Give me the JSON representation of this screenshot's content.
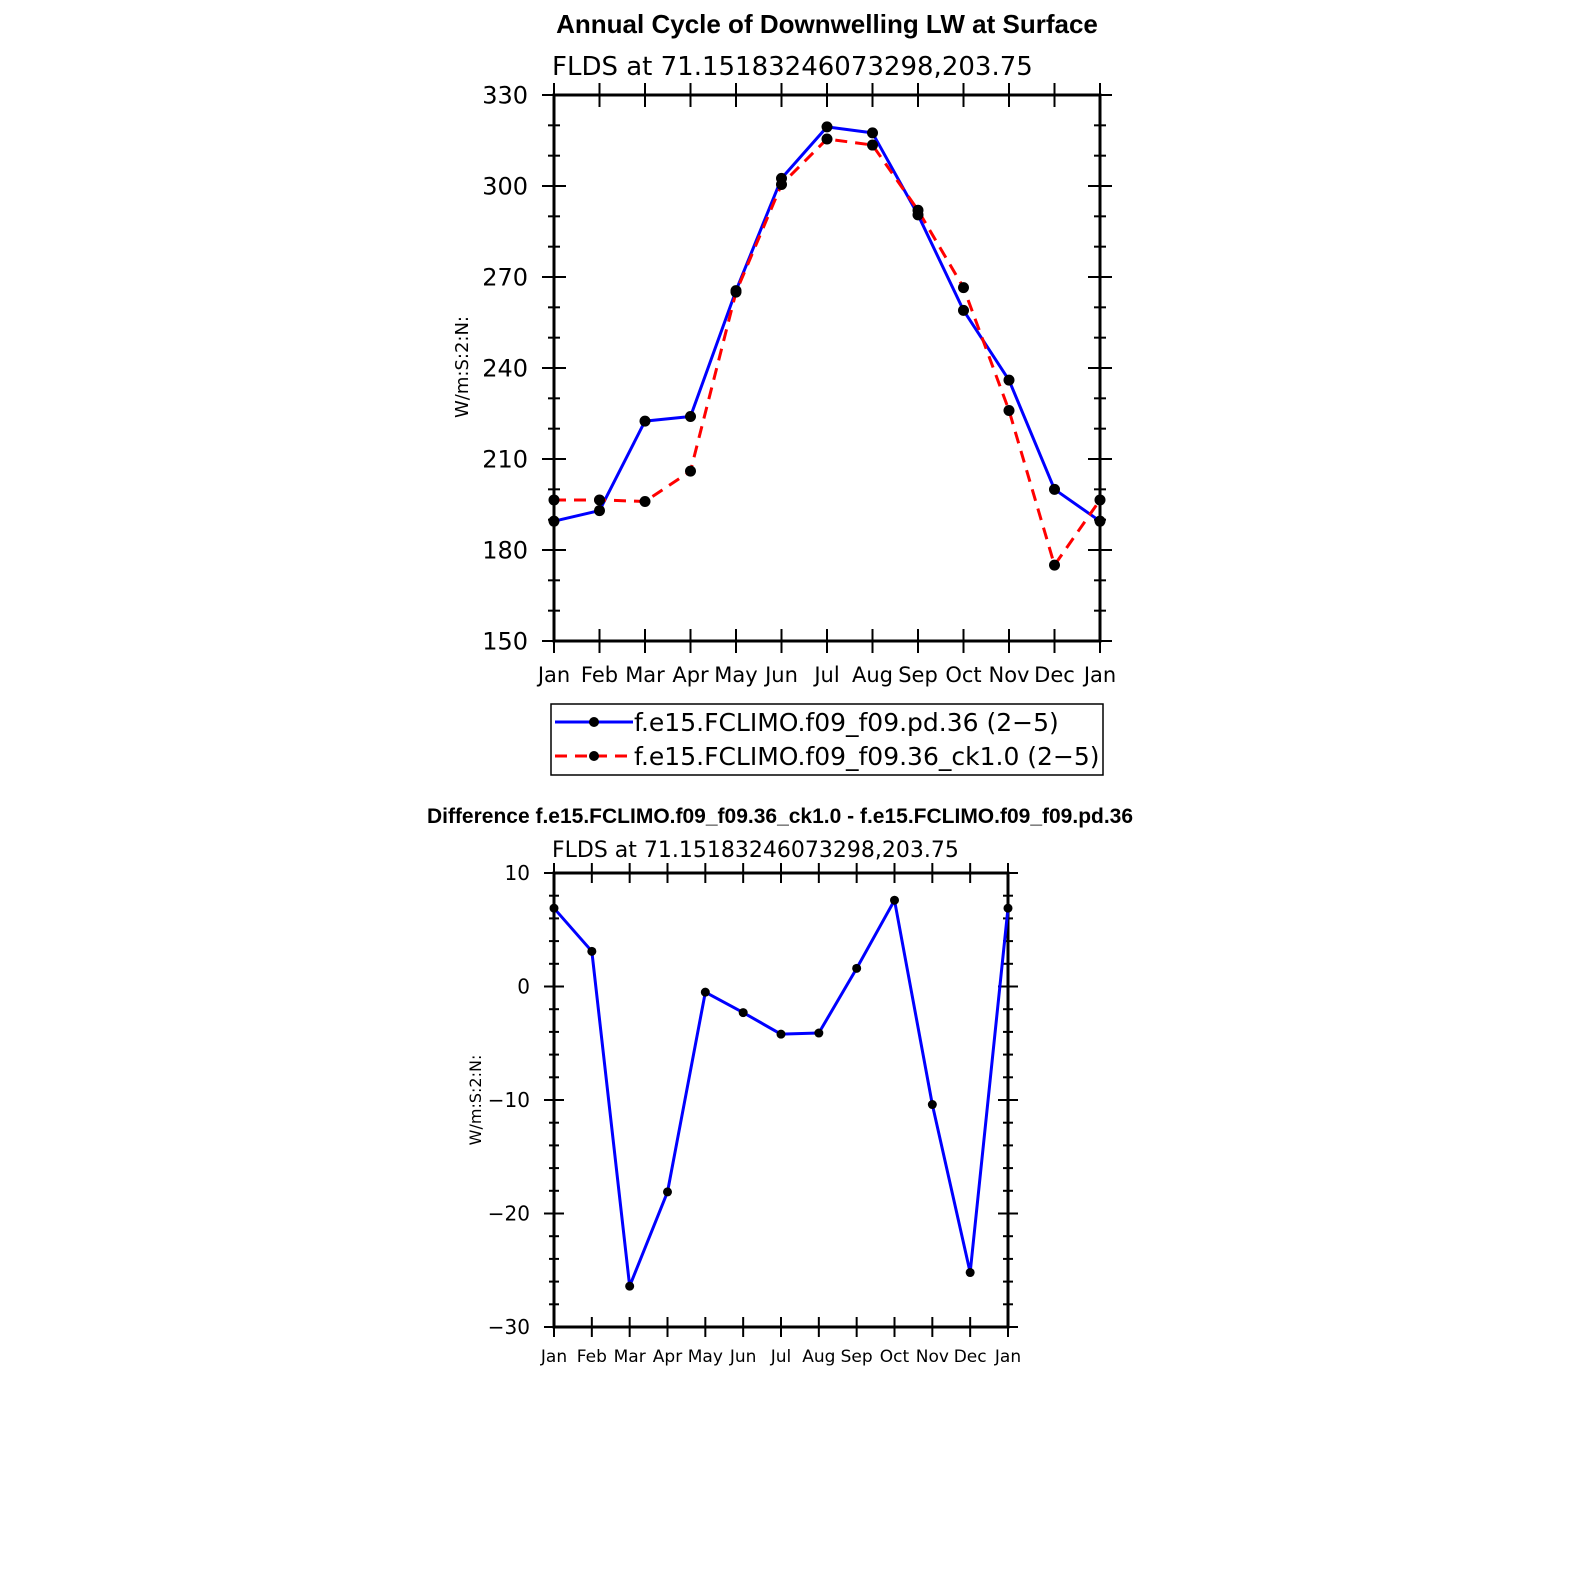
{
  "chart_data": [
    {
      "type": "line",
      "title": "Annual Cycle of Downwelling LW at Surface",
      "subtitle": "FLDS at 71.15183246073298,203.75",
      "ylabel": "W/m:S:2:N:",
      "xlabel": "",
      "categories": [
        "Jan",
        "Feb",
        "Mar",
        "Apr",
        "May",
        "Jun",
        "Jul",
        "Aug",
        "Sep",
        "Oct",
        "Nov",
        "Dec",
        "Jan"
      ],
      "yticks": [
        "150",
        "180",
        "210",
        "240",
        "270",
        "300",
        "330"
      ],
      "ylim": [
        150,
        330
      ],
      "grid": false,
      "legend_position": "bottom",
      "series": [
        {
          "name": "f.e15.FCLIMO.f09_f09.pd.36 (2−5)",
          "color": "#0000ff",
          "dash": "solid",
          "values": [
            189.5,
            193,
            222.5,
            224,
            265.5,
            302.5,
            319.5,
            317.5,
            290.5,
            259,
            236,
            200,
            189.5
          ]
        },
        {
          "name": "f.e15.FCLIMO.f09_f09.36_ck1.0 (2−5)",
          "color": "#ff0000",
          "dash": "dashed",
          "values": [
            196.5,
            196.5,
            196,
            206,
            265,
            300.5,
            315.5,
            313.5,
            292,
            266.5,
            226,
            175,
            196.5
          ]
        }
      ]
    },
    {
      "type": "line",
      "title": "Difference f.e15.FCLIMO.f09_f09.36_ck1.0 - f.e15.FCLIMO.f09_f09.pd.36",
      "subtitle": "FLDS at 71.15183246073298,203.75",
      "ylabel": "W/m:S:2:N:",
      "xlabel": "",
      "categories": [
        "Jan",
        "Feb",
        "Mar",
        "Apr",
        "May",
        "Jun",
        "Jul",
        "Aug",
        "Sep",
        "Oct",
        "Nov",
        "Dec",
        "Jan"
      ],
      "yticks": [
        "−30",
        "−20",
        "−10",
        "0",
        "10"
      ],
      "ylim": [
        -30,
        10
      ],
      "grid": false,
      "series": [
        {
          "name": "",
          "color": "#0000ff",
          "dash": "solid",
          "values": [
            6.9,
            3.1,
            -26.4,
            -18.1,
            -0.5,
            -2.3,
            -4.2,
            -4.1,
            1.6,
            7.6,
            -10.4,
            -25.2,
            6.9
          ]
        }
      ]
    }
  ]
}
